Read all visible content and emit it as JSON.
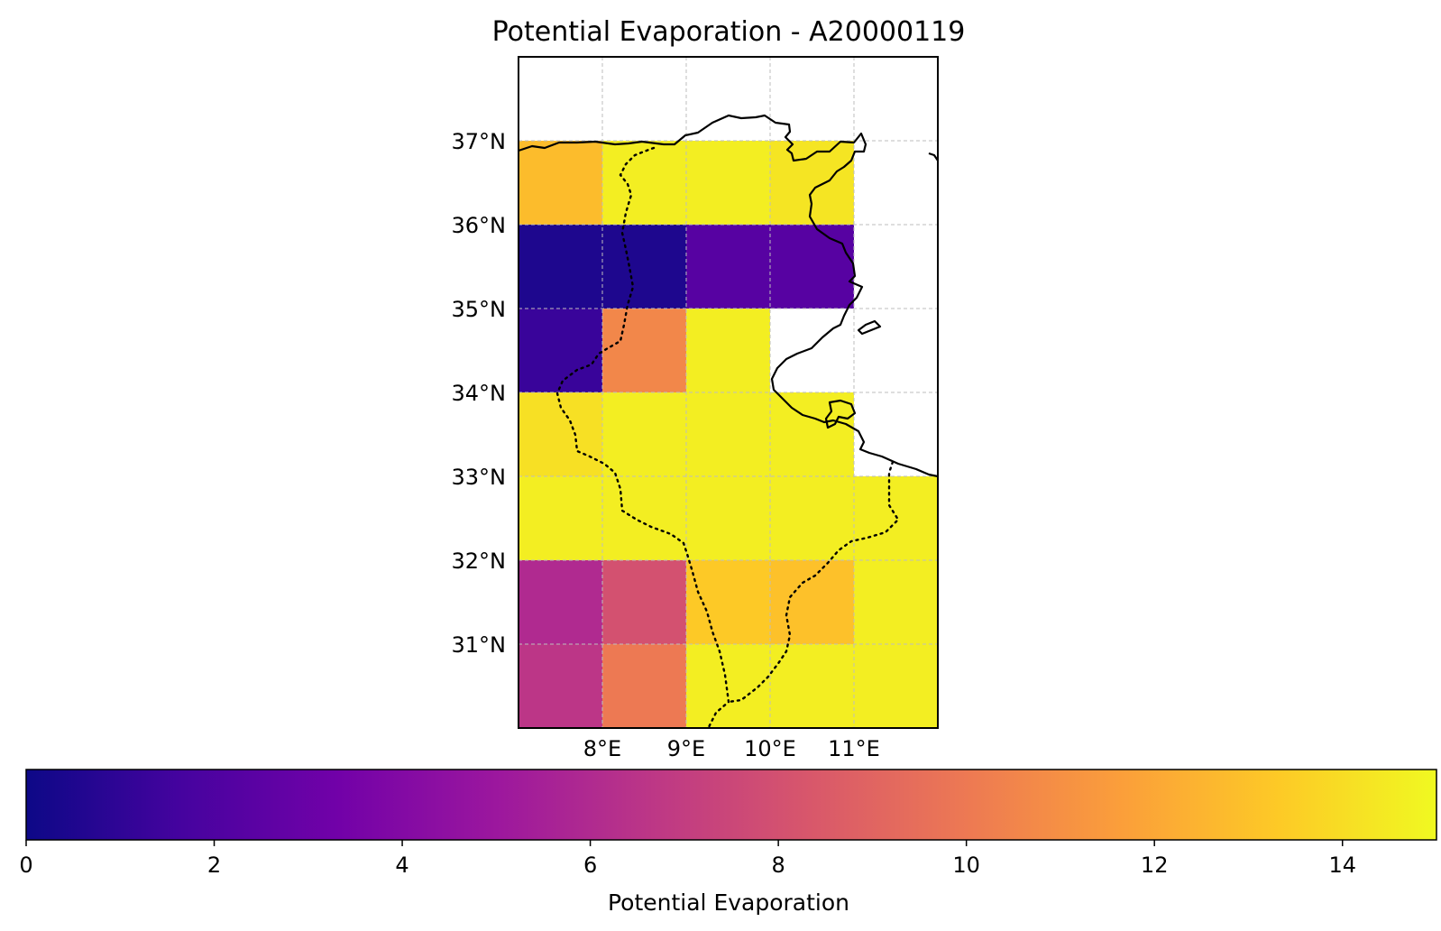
{
  "chart_data": {
    "type": "heatmap",
    "title": "Potential Evaporation - A20000119",
    "xlabel": "",
    "ylabel": "",
    "x_ticks": [
      {
        "value": 8,
        "label": "8°E"
      },
      {
        "value": 9,
        "label": "9°E"
      },
      {
        "value": 10,
        "label": "10°E"
      },
      {
        "value": 11,
        "label": "11°E"
      }
    ],
    "y_ticks": [
      {
        "value": 31,
        "label": "31°N"
      },
      {
        "value": 32,
        "label": "32°N"
      },
      {
        "value": 33,
        "label": "33°N"
      },
      {
        "value": 34,
        "label": "34°N"
      },
      {
        "value": 35,
        "label": "35°N"
      },
      {
        "value": 36,
        "label": "36°N"
      },
      {
        "value": 37,
        "label": "37°N"
      }
    ],
    "xlim": [
      7,
      12
    ],
    "ylim": [
      30,
      38
    ],
    "grid": true,
    "cell_size_deg": 1,
    "lon_edges": [
      7,
      8,
      9,
      10,
      11,
      12
    ],
    "lat_edges": [
      30,
      31,
      32,
      33,
      34,
      35,
      36,
      37
    ],
    "rows_south_to_north": [
      [
        6.6,
        10.0,
        14.6,
        14.6,
        14.6
      ],
      [
        6.0,
        8.0,
        13.3,
        13.0,
        14.6
      ],
      [
        14.6,
        14.6,
        14.6,
        14.6,
        14.6
      ],
      [
        14.1,
        14.6,
        14.6,
        14.6,
        null
      ],
      [
        1.3,
        10.6,
        14.6,
        null,
        null
      ],
      [
        0.5,
        0.5,
        2.3,
        2.3,
        null
      ],
      [
        12.8,
        14.6,
        14.6,
        14.3,
        null
      ]
    ],
    "colorbar": {
      "label": "Potential Evaporation",
      "min": 0,
      "max": 15,
      "ticks": [
        0,
        2,
        4,
        6,
        8,
        10,
        12,
        14
      ],
      "colormap": "plasma"
    },
    "features": [
      "coastline",
      "country borders (dotted)"
    ]
  },
  "colors": {
    "plasma_stops": [
      "#0d0887",
      "#46039f",
      "#7201a8",
      "#9c179e",
      "#bd3786",
      "#d8576b",
      "#ed7953",
      "#fb9f3a",
      "#fdca26",
      "#f0f921"
    ],
    "grid": "#bdbdbd",
    "frame": "#000000"
  }
}
